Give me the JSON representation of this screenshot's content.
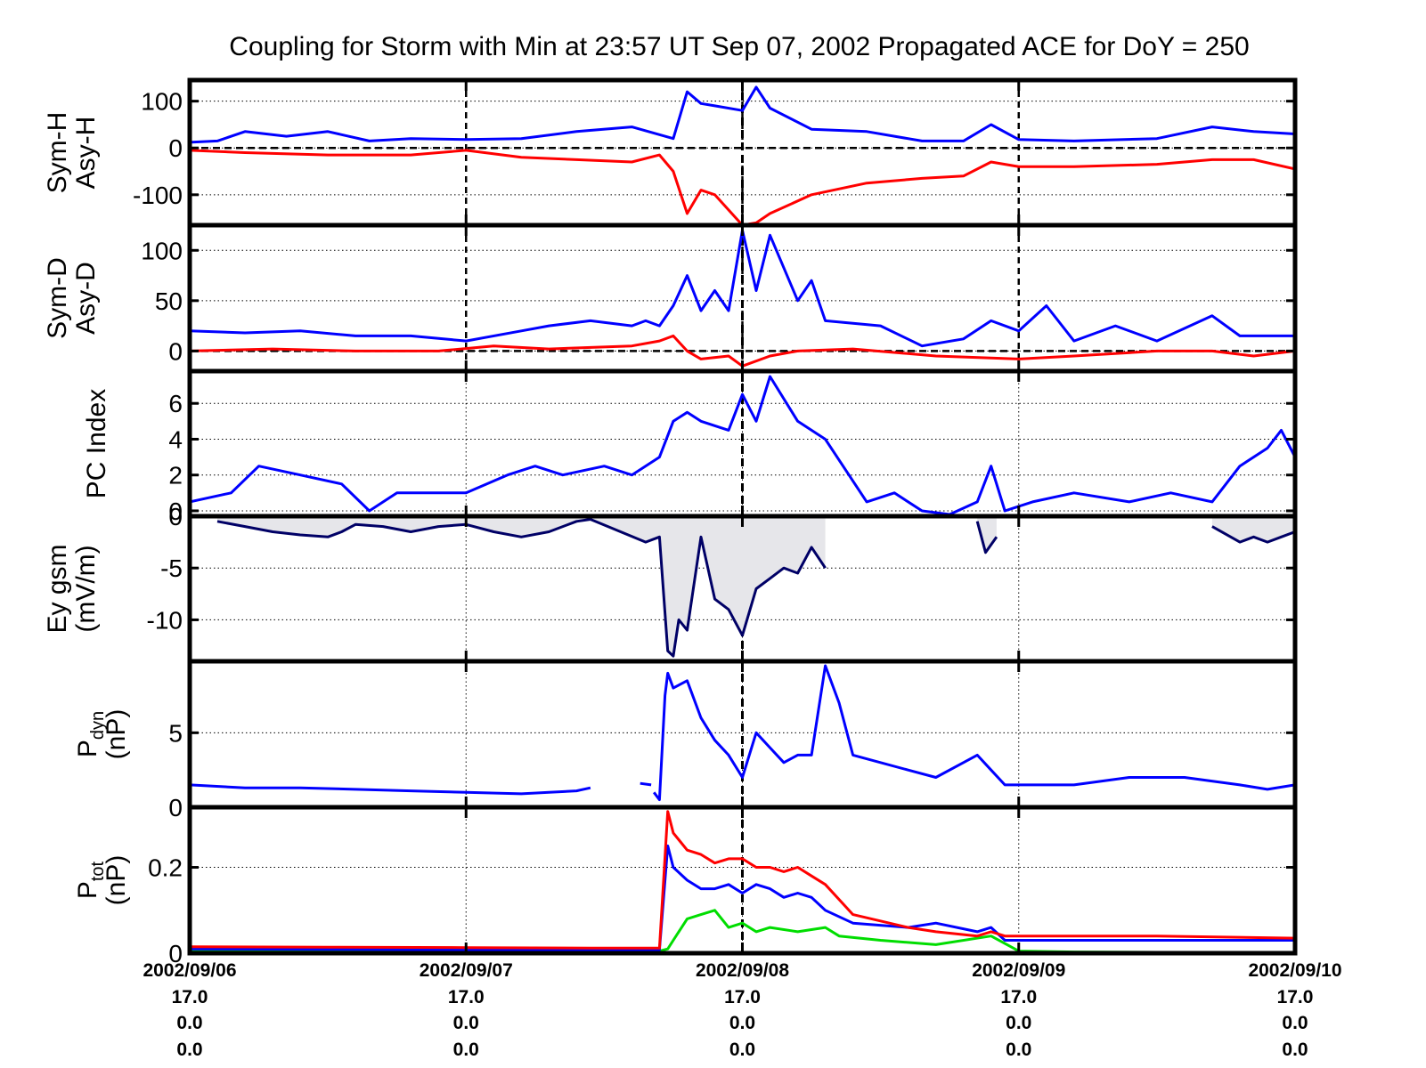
{
  "chart_data": {
    "type": "line",
    "title": "Coupling for Storm with Min at 23:57 UT Sep 07, 2002  Propagated ACE for DoY = 250",
    "x_range_days": [
      0,
      4
    ],
    "x_ticks": [
      {
        "date": "2002/09/06",
        "l2": "17.0",
        "l3": "0.0",
        "l4": "0.0"
      },
      {
        "date": "2002/09/07",
        "l2": "17.0",
        "l3": "0.0",
        "l4": "0.0"
      },
      {
        "date": "2002/09/08",
        "l2": "17.0",
        "l3": "0.0",
        "l4": "0.0"
      },
      {
        "date": "2002/09/09",
        "l2": "17.0",
        "l3": "0.0",
        "l4": "0.0"
      },
      {
        "date": "2002/09/10",
        "l2": "17.0",
        "l3": "0.0",
        "l4": "0.0"
      }
    ],
    "storm_min_day": 2.0,
    "panels": [
      {
        "id": "symh",
        "ylabel": [
          "Sym-H",
          "Asy-H"
        ],
        "ylim": [
          -165,
          145
        ],
        "yticks": [
          100,
          0,
          -100
        ],
        "ytick_labels": [
          "100",
          "0",
          "-100"
        ],
        "zero_line": true,
        "series": [
          {
            "color": "#0000ff",
            "x": [
              0,
              0.1,
              0.2,
              0.35,
              0.5,
              0.65,
              0.8,
              1.0,
              1.2,
              1.4,
              1.6,
              1.75,
              1.8,
              1.85,
              1.9,
              2.0,
              2.05,
              2.1,
              2.25,
              2.45,
              2.65,
              2.8,
              2.9,
              3.0,
              3.2,
              3.5,
              3.7,
              3.85,
              4.0
            ],
            "y": [
              12,
              15,
              35,
              25,
              35,
              15,
              20,
              18,
              20,
              35,
              45,
              20,
              120,
              95,
              90,
              80,
              130,
              85,
              40,
              35,
              15,
              15,
              50,
              18,
              15,
              20,
              45,
              35,
              30
            ]
          },
          {
            "color": "#ff0000",
            "x": [
              0,
              0.2,
              0.5,
              0.8,
              1.0,
              1.2,
              1.4,
              1.6,
              1.7,
              1.75,
              1.8,
              1.85,
              1.9,
              2.0,
              2.05,
              2.1,
              2.25,
              2.45,
              2.65,
              2.8,
              2.9,
              3.0,
              3.2,
              3.5,
              3.7,
              3.85,
              4.0
            ],
            "y": [
              -5,
              -10,
              -15,
              -15,
              -5,
              -20,
              -25,
              -30,
              -15,
              -50,
              -140,
              -90,
              -100,
              -165,
              -160,
              -140,
              -100,
              -75,
              -65,
              -60,
              -30,
              -40,
              -40,
              -35,
              -25,
              -25,
              -45
            ]
          }
        ]
      },
      {
        "id": "symd",
        "ylabel": [
          "Sym-D",
          "Asy-D"
        ],
        "ylim": [
          -20,
          125
        ],
        "yticks": [
          100,
          50,
          0
        ],
        "ytick_labels": [
          "100",
          "50",
          "0"
        ],
        "zero_line": true,
        "series": [
          {
            "color": "#0000ff",
            "x": [
              0,
              0.2,
              0.4,
              0.6,
              0.8,
              1.0,
              1.2,
              1.3,
              1.45,
              1.6,
              1.65,
              1.7,
              1.75,
              1.8,
              1.85,
              1.9,
              1.95,
              2.0,
              2.05,
              2.1,
              2.2,
              2.25,
              2.3,
              2.5,
              2.65,
              2.8,
              2.9,
              3.0,
              3.1,
              3.2,
              3.35,
              3.5,
              3.7,
              3.8,
              4.0
            ],
            "y": [
              20,
              18,
              20,
              15,
              15,
              10,
              20,
              25,
              30,
              25,
              30,
              25,
              45,
              75,
              40,
              60,
              40,
              120,
              60,
              115,
              50,
              70,
              30,
              25,
              5,
              12,
              30,
              20,
              45,
              10,
              25,
              10,
              35,
              15,
              15
            ]
          },
          {
            "color": "#ff0000",
            "x": [
              0,
              0.3,
              0.6,
              0.9,
              1.1,
              1.3,
              1.6,
              1.7,
              1.75,
              1.8,
              1.85,
              1.95,
              2.0,
              2.1,
              2.2,
              2.4,
              2.7,
              3.0,
              3.2,
              3.5,
              3.7,
              3.85,
              4.0
            ],
            "y": [
              0,
              2,
              0,
              0,
              5,
              2,
              5,
              10,
              15,
              0,
              -8,
              -5,
              -15,
              -5,
              0,
              2,
              -5,
              -8,
              -5,
              0,
              0,
              -5,
              0
            ]
          }
        ]
      },
      {
        "id": "pc",
        "ylabel": [
          "PC Index"
        ],
        "ylim": [
          -0.3,
          7.8
        ],
        "yticks": [
          6,
          4,
          2,
          0
        ],
        "ytick_labels": [
          "6",
          "4",
          "2",
          "0"
        ],
        "zero_line": false,
        "series": [
          {
            "color": "#0000ff",
            "x": [
              0,
              0.15,
              0.25,
              0.4,
              0.55,
              0.65,
              0.75,
              0.9,
              1.0,
              1.15,
              1.25,
              1.35,
              1.5,
              1.6,
              1.7,
              1.75,
              1.8,
              1.85,
              1.95,
              2.0,
              2.05,
              2.1,
              2.2,
              2.3,
              2.45,
              2.55,
              2.65,
              2.75,
              2.85,
              2.9,
              2.95,
              3.05,
              3.2,
              3.4,
              3.55,
              3.7,
              3.8,
              3.9,
              3.95,
              4.0
            ],
            "y": [
              0.5,
              1.0,
              2.5,
              2.0,
              1.5,
              0.0,
              1.0,
              1.0,
              1.0,
              2.0,
              2.5,
              2.0,
              2.5,
              2.0,
              3.0,
              5.0,
              5.5,
              5.0,
              4.5,
              6.5,
              5.0,
              7.5,
              5.0,
              4.0,
              0.5,
              1.0,
              0.0,
              -0.2,
              0.5,
              2.5,
              0.0,
              0.5,
              1.0,
              0.5,
              1.0,
              0.5,
              2.5,
              3.5,
              4.5,
              3.0
            ]
          }
        ]
      },
      {
        "id": "ey",
        "ylabel": [
          "Ey gsm",
          "(mV/m)"
        ],
        "ylim": [
          -14,
          0
        ],
        "yticks": [
          0,
          -5,
          -10
        ],
        "ytick_labels": [
          "0",
          "-5",
          "-10"
        ],
        "zero_line": false,
        "fill": "#e6e6ea",
        "series": [
          {
            "color": "#000066",
            "x": [
              0.1,
              0.2,
              0.3,
              0.4,
              0.5,
              0.55,
              0.6,
              0.7,
              0.8,
              0.9,
              1.0,
              1.1,
              1.2,
              1.3,
              1.4,
              1.45,
              1.65,
              1.7,
              1.73,
              1.75,
              1.77,
              1.8,
              1.85,
              1.9,
              1.95,
              2.0,
              2.05,
              2.1,
              2.15,
              2.2,
              2.25,
              2.3
            ],
            "y": [
              -0.5,
              -1.0,
              -1.5,
              -1.8,
              -2.0,
              -1.5,
              -0.8,
              -1.0,
              -1.5,
              -1.0,
              -0.8,
              -1.5,
              -2.0,
              -1.5,
              -0.5,
              -0.3,
              -2.5,
              -2.0,
              -13.0,
              -13.5,
              -10.0,
              -11.0,
              -2.0,
              -8.0,
              -9.0,
              -11.5,
              -7.0,
              -6.0,
              -5.0,
              -5.5,
              -3.0,
              -5.0
            ]
          },
          {
            "color": "#000066",
            "x": [
              2.85,
              2.88,
              2.92
            ],
            "y": [
              -0.5,
              -3.5,
              -2.0
            ]
          },
          {
            "color": "#000066",
            "x": [
              3.7,
              3.8,
              3.85,
              3.9,
              3.95,
              4.0
            ],
            "y": [
              -1.0,
              -2.5,
              -2.0,
              -2.5,
              -2.0,
              -1.5
            ]
          }
        ]
      },
      {
        "id": "pdyn",
        "ylabel": [
          "P",
          "dyn",
          "(nP)"
        ],
        "ylim": [
          0,
          9.8
        ],
        "yticks": [
          5,
          0
        ],
        "ytick_labels": [
          "5",
          "0"
        ],
        "zero_line": false,
        "series": [
          {
            "color": "#0000ff",
            "x": [
              0,
              0.2,
              0.4,
              0.6,
              0.8,
              1.0,
              1.2,
              1.3,
              1.4,
              1.45
            ],
            "y": [
              1.5,
              1.3,
              1.3,
              1.2,
              1.1,
              1.0,
              0.9,
              1.0,
              1.1,
              1.3
            ]
          },
          {
            "color": "#0000ff",
            "x": [
              1.63,
              1.67
            ],
            "y": [
              1.6,
              1.5
            ]
          },
          {
            "color": "#0000ff",
            "x": [
              1.68,
              1.7,
              1.72,
              1.73,
              1.75,
              1.8,
              1.85,
              1.9,
              1.95,
              2.0,
              2.05,
              2.1,
              2.15,
              2.2,
              2.25,
              2.3,
              2.35,
              2.4,
              2.6,
              2.7,
              2.8,
              2.85,
              2.9,
              2.95,
              3.0,
              3.2,
              3.4,
              3.6,
              3.8,
              3.9,
              4.0
            ],
            "y": [
              1.0,
              0.5,
              7.5,
              9.0,
              8.0,
              8.5,
              6.0,
              4.5,
              3.5,
              2.0,
              5.0,
              4.0,
              3.0,
              3.5,
              3.5,
              9.5,
              7.0,
              3.5,
              2.5,
              2.0,
              3.0,
              3.5,
              2.5,
              1.5,
              1.5,
              1.5,
              2.0,
              2.0,
              1.5,
              1.2,
              1.5
            ]
          }
        ]
      },
      {
        "id": "ptot",
        "ylabel": [
          "P",
          "tot",
          "(nP)"
        ],
        "ylim": [
          0,
          0.34
        ],
        "yticks": [
          0.2,
          0
        ],
        "ytick_labels": [
          "0.2",
          "0"
        ],
        "zero_line": false,
        "series": [
          {
            "color": "#00dd00",
            "x": [
              0,
              0.5,
              1.0,
              1.45,
              1.7,
              1.73,
              1.75,
              1.8,
              1.85,
              1.9,
              1.95,
              2.0,
              2.05,
              2.1,
              2.2,
              2.3,
              2.35,
              2.5,
              2.7,
              2.9,
              3.0,
              3.2,
              3.5,
              4.0
            ],
            "y": [
              0.005,
              0.005,
              0.005,
              0.005,
              0.005,
              0.01,
              0.03,
              0.08,
              0.09,
              0.1,
              0.06,
              0.07,
              0.05,
              0.06,
              0.05,
              0.06,
              0.04,
              0.03,
              0.02,
              0.04,
              0.005,
              0.003,
              0.002,
              0.001
            ]
          },
          {
            "color": "#0000ff",
            "x": [
              0,
              0.5,
              1.0,
              1.45,
              1.7,
              1.73,
              1.75,
              1.8,
              1.85,
              1.9,
              1.95,
              2.0,
              2.05,
              2.1,
              2.15,
              2.2,
              2.25,
              2.3,
              2.4,
              2.6,
              2.7,
              2.85,
              2.9,
              2.95,
              3.0,
              3.2,
              3.5,
              4.0
            ],
            "y": [
              0.01,
              0.009,
              0.008,
              0.008,
              0.008,
              0.25,
              0.2,
              0.17,
              0.15,
              0.15,
              0.16,
              0.14,
              0.16,
              0.15,
              0.13,
              0.14,
              0.13,
              0.1,
              0.07,
              0.06,
              0.07,
              0.05,
              0.06,
              0.03,
              0.03,
              0.03,
              0.03,
              0.03
            ]
          },
          {
            "color": "#ff0000",
            "x": [
              0,
              0.5,
              1.0,
              1.45,
              1.7,
              1.73,
              1.75,
              1.8,
              1.85,
              1.9,
              1.95,
              2.0,
              2.05,
              2.1,
              2.15,
              2.2,
              2.25,
              2.3,
              2.4,
              2.6,
              2.7,
              2.85,
              2.9,
              2.95,
              3.0,
              3.2,
              3.5,
              4.0
            ],
            "y": [
              0.015,
              0.014,
              0.013,
              0.012,
              0.012,
              0.33,
              0.28,
              0.24,
              0.23,
              0.21,
              0.22,
              0.22,
              0.2,
              0.2,
              0.19,
              0.2,
              0.18,
              0.16,
              0.09,
              0.06,
              0.05,
              0.04,
              0.05,
              0.04,
              0.04,
              0.04,
              0.04,
              0.035
            ]
          }
        ]
      }
    ]
  }
}
